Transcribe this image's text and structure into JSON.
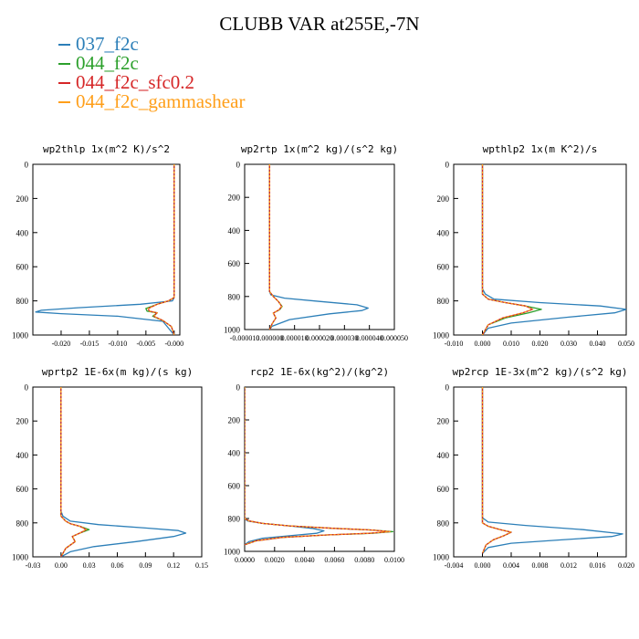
{
  "title": "CLUBB VAR at255E,-7N",
  "colors": {
    "037_f2c": "#2c7fb8",
    "044_f2c": "#2ca02c",
    "044_f2c_sfc0.2": "#d62728",
    "044_f2c_gammashear": "#ff9f1a"
  },
  "legend": [
    {
      "label": "037_f2c",
      "color": "#2c7fb8"
    },
    {
      "label": "044_f2c",
      "color": "#2ca02c"
    },
    {
      "label": "044_f2c_sfc0.2",
      "color": "#d62728"
    },
    {
      "label": "044_f2c_gammashear",
      "color": "#ff9f1a"
    }
  ],
  "chart_data": [
    {
      "type": "line",
      "title": "wp2thlp  1x(m^2 K)/s^2",
      "xlim": [
        -0.025,
        0.001
      ],
      "ylim": [
        1000,
        0
      ],
      "xticks": [
        -0.02,
        -0.015,
        -0.01,
        -0.005,
        0.0
      ],
      "xticklabels": [
        "-0.020",
        "-0.015",
        "-0.010",
        "-0.005",
        "-0.000"
      ],
      "yticks": [
        0,
        200,
        400,
        600,
        800,
        1000
      ],
      "series": [
        {
          "name": "037_f2c",
          "color": "#2c7fb8",
          "x": [
            0,
            0,
            -0.0003,
            -0.006,
            -0.017,
            -0.0235,
            -0.0245,
            -0.02,
            -0.01,
            -0.002,
            0
          ],
          "y": [
            0,
            780,
            800,
            820,
            840,
            855,
            865,
            875,
            890,
            920,
            1000
          ]
        },
        {
          "name": "044_f2c",
          "color": "#2ca02c",
          "x": [
            0,
            0,
            -0.001,
            -0.003,
            -0.005,
            -0.0048,
            -0.003,
            -0.0038,
            -0.002,
            -0.0005,
            0
          ],
          "y": [
            0,
            780,
            800,
            820,
            845,
            860,
            870,
            890,
            915,
            950,
            1000
          ]
        },
        {
          "name": "044_f2c_sfc0.2",
          "color": "#d62728",
          "x": [
            0,
            0,
            -0.001,
            -0.003,
            -0.0046,
            -0.0044,
            -0.003,
            -0.0036,
            -0.002,
            -0.0005,
            0
          ],
          "y": [
            0,
            780,
            800,
            820,
            845,
            860,
            870,
            890,
            915,
            950,
            1000
          ]
        },
        {
          "name": "044_f2c_gammashear",
          "color": "#ff9f1a",
          "x": [
            0,
            0,
            -0.001,
            -0.003,
            -0.0046,
            -0.0044,
            -0.003,
            -0.0036,
            -0.002,
            -0.0005,
            0
          ],
          "y": [
            0,
            780,
            800,
            820,
            845,
            860,
            870,
            890,
            915,
            950,
            1000
          ]
        }
      ]
    },
    {
      "type": "line",
      "title": "wp2rtp  1x(m^2 kg)/(s^2 kg)",
      "xlim": [
        -1e-05,
        5e-05
      ],
      "ylim": [
        1000,
        0
      ],
      "xticks": [
        -1e-05,
        0.0,
        1e-05,
        2e-05,
        3e-05,
        4e-05,
        5e-05
      ],
      "xticklabels": [
        "-0.000010",
        "0.000000",
        "0.000010",
        "0.000020",
        "0.000030",
        "0.000040",
        "0.000050"
      ],
      "yticks": [
        0,
        200,
        400,
        600,
        800,
        1000
      ],
      "series": [
        {
          "name": "037_f2c",
          "color": "#2c7fb8",
          "x": [
            0,
            0,
            5e-07,
            6e-06,
            2e-05,
            3.5e-05,
            3.95e-05,
            3.7e-05,
            2.4e-05,
            8e-06,
            1e-06,
            0
          ],
          "y": [
            0,
            770,
            790,
            810,
            830,
            850,
            870,
            885,
            905,
            940,
            980,
            1000
          ]
        },
        {
          "name": "044_f2c",
          "color": "#2ca02c",
          "x": [
            0,
            0,
            1.5e-06,
            3.5e-06,
            5e-06,
            4e-06,
            1.5e-06,
            2.5e-06,
            1e-06,
            0
          ],
          "y": [
            0,
            770,
            800,
            830,
            860,
            880,
            900,
            930,
            965,
            1000
          ]
        },
        {
          "name": "044_f2c_sfc0.2",
          "color": "#d62728",
          "x": [
            0,
            0,
            1.5e-06,
            3.5e-06,
            4.8e-06,
            3.8e-06,
            1.5e-06,
            2.5e-06,
            1e-06,
            0
          ],
          "y": [
            0,
            770,
            800,
            830,
            860,
            880,
            900,
            930,
            965,
            1000
          ]
        },
        {
          "name": "044_f2c_gammashear",
          "color": "#ff9f1a",
          "x": [
            0,
            0,
            1.5e-06,
            3.5e-06,
            4.8e-06,
            3.8e-06,
            1.5e-06,
            2.5e-06,
            1e-06,
            0
          ],
          "y": [
            0,
            770,
            800,
            830,
            860,
            880,
            900,
            930,
            965,
            1000
          ]
        }
      ]
    },
    {
      "type": "line",
      "title": "wpthlp2  1x(m K^2)/s",
      "xlim": [
        -0.01,
        0.05
      ],
      "ylim": [
        1000,
        0
      ],
      "xticks": [
        -0.01,
        0.0,
        0.01,
        0.02,
        0.03,
        0.04,
        0.05
      ],
      "xticklabels": [
        "-0.010",
        "0.000",
        "0.010",
        "0.020",
        "0.030",
        "0.040",
        "0.050"
      ],
      "yticks": [
        0,
        200,
        400,
        600,
        800,
        1000
      ],
      "series": [
        {
          "name": "037_f2c",
          "color": "#2c7fb8",
          "x": [
            0,
            0,
            0.001,
            0.004,
            0.02,
            0.041,
            0.05,
            0.046,
            0.03,
            0.01,
            0.002,
            0
          ],
          "y": [
            0,
            730,
            760,
            790,
            810,
            830,
            850,
            870,
            895,
            930,
            960,
            1000
          ]
        },
        {
          "name": "044_f2c",
          "color": "#2ca02c",
          "x": [
            0,
            0,
            0.002,
            0.008,
            0.015,
            0.0205,
            0.016,
            0.008,
            0.002,
            0
          ],
          "y": [
            0,
            760,
            790,
            810,
            830,
            850,
            870,
            900,
            940,
            1000
          ]
        },
        {
          "name": "044_f2c_sfc0.2",
          "color": "#d62728",
          "x": [
            0,
            0,
            0.002,
            0.008,
            0.015,
            0.0175,
            0.014,
            0.007,
            0.002,
            0
          ],
          "y": [
            0,
            760,
            790,
            810,
            830,
            850,
            870,
            900,
            940,
            1000
          ]
        },
        {
          "name": "044_f2c_gammashear",
          "color": "#ff9f1a",
          "x": [
            0,
            0,
            0.002,
            0.008,
            0.015,
            0.0175,
            0.014,
            0.007,
            0.002,
            0
          ],
          "y": [
            0,
            760,
            790,
            810,
            830,
            850,
            870,
            900,
            940,
            1000
          ]
        }
      ]
    },
    {
      "type": "line",
      "title": "wprtp2  1E-6x(m kg)/(s kg)",
      "xlim": [
        -0.03,
        0.15
      ],
      "ylim": [
        1000,
        0
      ],
      "xticks": [
        -0.03,
        0.0,
        0.03,
        0.06,
        0.09,
        0.12,
        0.15
      ],
      "xticklabels": [
        "-0.03",
        "0.00",
        "0.03",
        "0.06",
        "0.09",
        "0.12",
        "0.15"
      ],
      "yticks": [
        0,
        200,
        400,
        600,
        800,
        1000
      ],
      "series": [
        {
          "name": "037_f2c",
          "color": "#2c7fb8",
          "x": [
            0,
            0,
            0.002,
            0.01,
            0.04,
            0.09,
            0.125,
            0.133,
            0.12,
            0.08,
            0.035,
            0.01,
            0
          ],
          "y": [
            0,
            730,
            760,
            790,
            810,
            830,
            845,
            860,
            880,
            910,
            940,
            970,
            1000
          ]
        },
        {
          "name": "044_f2c",
          "color": "#2ca02c",
          "x": [
            0,
            0,
            0.005,
            0.01,
            0.02,
            0.03,
            0.02,
            0.012,
            0.015,
            0.005,
            0
          ],
          "y": [
            0,
            760,
            790,
            805,
            820,
            840,
            860,
            880,
            910,
            950,
            1000
          ]
        },
        {
          "name": "044_f2c_sfc0.2",
          "color": "#d62728",
          "x": [
            0,
            0,
            0.005,
            0.01,
            0.02,
            0.027,
            0.02,
            0.012,
            0.015,
            0.005,
            0
          ],
          "y": [
            0,
            760,
            790,
            805,
            820,
            840,
            860,
            880,
            910,
            950,
            1000
          ]
        },
        {
          "name": "044_f2c_gammashear",
          "color": "#ff9f1a",
          "x": [
            0,
            0,
            0.005,
            0.01,
            0.02,
            0.027,
            0.02,
            0.012,
            0.015,
            0.005,
            0
          ],
          "y": [
            0,
            760,
            790,
            805,
            820,
            840,
            860,
            880,
            910,
            950,
            1000
          ]
        }
      ]
    },
    {
      "type": "line",
      "title": "rcp2  1E-6x(kg^2)/(kg^2)",
      "xlim": [
        0,
        0.01
      ],
      "ylim": [
        1000,
        0
      ],
      "xticks": [
        0,
        0.002,
        0.004,
        0.006,
        0.008,
        0.01
      ],
      "xticklabels": [
        "0.0000",
        "0.0020",
        "0.0040",
        "0.0060",
        "0.0080",
        "0.0100"
      ],
      "yticks": [
        0,
        200,
        400,
        600,
        800,
        1000
      ],
      "series": [
        {
          "name": "037_f2c",
          "color": "#2c7fb8",
          "x": [
            0,
            0,
            0.0002,
            0.0012,
            0.003,
            0.0045,
            0.0053,
            0.0048,
            0.003,
            0.0012,
            0.0003,
            0
          ],
          "y": [
            0,
            800,
            815,
            830,
            845,
            860,
            875,
            890,
            905,
            920,
            940,
            960
          ]
        },
        {
          "name": "044_f2c",
          "color": "#2ca02c",
          "x": [
            0,
            0,
            0.0003,
            0.0012,
            0.003,
            0.006,
            0.0085,
            0.0099,
            0.0085,
            0.0055,
            0.0025,
            0.0008,
            0
          ],
          "y": [
            0,
            800,
            815,
            830,
            845,
            860,
            870,
            880,
            890,
            900,
            915,
            935,
            960
          ]
        },
        {
          "name": "044_f2c_sfc0.2",
          "color": "#d62728",
          "x": [
            0,
            0,
            0.0003,
            0.0012,
            0.003,
            0.006,
            0.0085,
            0.0097,
            0.0083,
            0.0055,
            0.0025,
            0.0008,
            0
          ],
          "y": [
            0,
            800,
            815,
            830,
            845,
            860,
            870,
            880,
            890,
            900,
            915,
            935,
            960
          ]
        },
        {
          "name": "044_f2c_gammashear",
          "color": "#ff9f1a",
          "x": [
            0,
            0,
            0.0003,
            0.0012,
            0.003,
            0.006,
            0.0085,
            0.0097,
            0.0083,
            0.0055,
            0.0025,
            0.0008,
            0
          ],
          "y": [
            0,
            800,
            815,
            830,
            845,
            860,
            870,
            880,
            890,
            900,
            915,
            935,
            960
          ]
        }
      ]
    },
    {
      "type": "line",
      "title": "wp2rcp  1E-3x(m^2 kg)/(s^2 kg)",
      "xlim": [
        -0.004,
        0.02
      ],
      "ylim": [
        1000,
        0
      ],
      "xticks": [
        -0.004,
        0.0,
        0.004,
        0.008,
        0.012,
        0.016,
        0.02
      ],
      "xticklabels": [
        "-0.004",
        "0.000",
        "0.004",
        "0.008",
        "0.012",
        "0.016",
        "0.020"
      ],
      "yticks": [
        0,
        200,
        400,
        600,
        800,
        1000
      ],
      "series": [
        {
          "name": "037_f2c",
          "color": "#2c7fb8",
          "x": [
            0,
            0,
            0.0008,
            0.006,
            0.014,
            0.0195,
            0.018,
            0.011,
            0.004,
            0.0008,
            0
          ],
          "y": [
            0,
            770,
            795,
            815,
            840,
            865,
            880,
            900,
            920,
            945,
            980
          ]
        },
        {
          "name": "044_f2c",
          "color": "#2ca02c",
          "x": [
            0,
            0,
            0.0008,
            0.0025,
            0.004,
            0.003,
            0.0015,
            0.0005,
            0
          ],
          "y": [
            0,
            800,
            820,
            840,
            855,
            875,
            900,
            930,
            980
          ]
        },
        {
          "name": "044_f2c_sfc0.2",
          "color": "#d62728",
          "x": [
            0,
            0,
            0.0008,
            0.0025,
            0.004,
            0.003,
            0.0015,
            0.0005,
            0
          ],
          "y": [
            0,
            800,
            820,
            840,
            855,
            875,
            900,
            930,
            980
          ]
        },
        {
          "name": "044_f2c_gammashear",
          "color": "#ff9f1a",
          "x": [
            0,
            0,
            0.0008,
            0.0025,
            0.004,
            0.003,
            0.0015,
            0.0005,
            0
          ],
          "y": [
            0,
            800,
            820,
            840,
            855,
            875,
            900,
            930,
            980
          ]
        }
      ]
    }
  ]
}
